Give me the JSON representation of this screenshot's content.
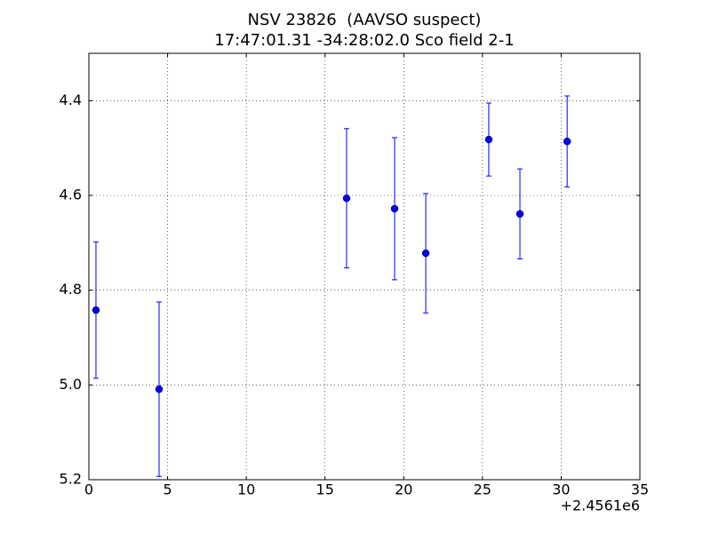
{
  "chart_data": {
    "type": "errorbar",
    "title": "NSV 23826  (AAVSO suspect)",
    "subtitle": "17:47:01.31 -34:28:02.0 Sco field 2-1",
    "x_offset_label": "+2.4561e6",
    "x": [
      0.45,
      4.46,
      16.37,
      19.42,
      21.4,
      25.4,
      27.38,
      30.38
    ],
    "values": [
      4.842,
      5.009,
      4.606,
      4.628,
      4.722,
      4.482,
      4.639,
      4.486
    ],
    "errors": [
      0.144,
      0.184,
      0.147,
      0.15,
      0.126,
      0.077,
      0.095,
      0.096
    ],
    "color": "#0000ff",
    "xlim": [
      0,
      35
    ],
    "xticks": [
      0,
      5,
      10,
      15,
      20,
      25,
      30,
      35
    ],
    "ylim": [
      5.2,
      4.3
    ],
    "yticks": [
      4.4,
      4.6,
      4.8,
      {
        "value": 5,
        "label": "5.0"
      },
      5.2
    ],
    "grid": true
  }
}
